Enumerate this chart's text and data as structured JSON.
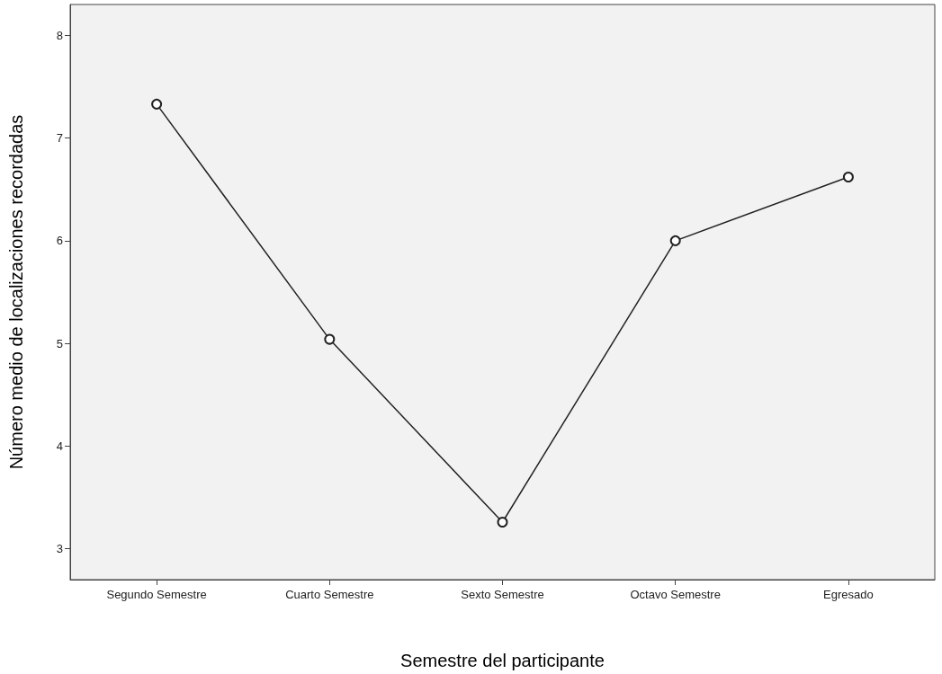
{
  "chart_data": {
    "type": "line",
    "xlabel": "Semestre del participante",
    "ylabel": "Número medio de localizaciones recordadas",
    "categories": [
      "Segundo Semestre",
      "Cuarto Semestre",
      "Sexto Semestre",
      "Octavo Semestre",
      "Egresado"
    ],
    "series": [
      {
        "color": "#222222",
        "values": [
          7.33,
          5.04,
          3.26,
          6.0,
          6.62
        ]
      }
    ],
    "ylim": [
      2.7,
      8.3
    ],
    "yticks": [
      3,
      4,
      5,
      6,
      7,
      8
    ],
    "grid": false,
    "marker": "circle",
    "line_style": "solid"
  }
}
